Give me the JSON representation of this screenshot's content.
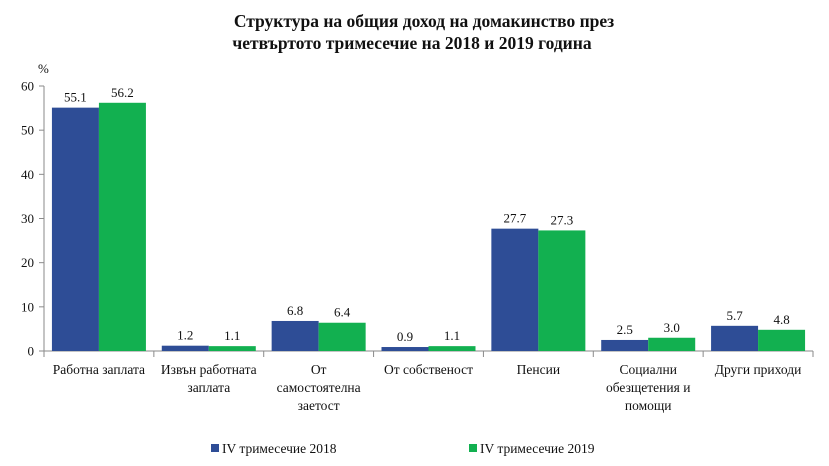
{
  "chart_data": {
    "type": "bar",
    "title": [
      "Структура на общия доход на домакинство през",
      "четвъртото тримесечие на 2018 и 2019 година"
    ],
    "ylabel": "%",
    "ylim": [
      0,
      60
    ],
    "yticks": [
      0,
      10,
      20,
      30,
      40,
      50,
      60
    ],
    "grid": false,
    "legend_position": "bottom",
    "categories": [
      [
        "Работна заплата"
      ],
      [
        "Извън работната",
        "заплата"
      ],
      [
        "От",
        "самостоятелна",
        "заетост"
      ],
      [
        "От собственост"
      ],
      [
        "Пенсии"
      ],
      [
        "Социални",
        "обезщетения и",
        "помощи"
      ],
      [
        "Други приходи"
      ]
    ],
    "series": [
      {
        "name": "IV  тримесечие 2018",
        "color": "#2e4d96",
        "values": [
          55.1,
          1.2,
          6.8,
          0.9,
          27.7,
          2.5,
          5.7
        ],
        "labels": [
          "55.1",
          "1.2",
          "6.8",
          "0.9",
          "27.7",
          "2.5",
          "5.7"
        ]
      },
      {
        "name": "IV  тримесечие 2019",
        "color": "#12b050",
        "values": [
          56.2,
          1.1,
          6.4,
          1.1,
          27.3,
          3.0,
          4.8
        ],
        "labels": [
          "56.2",
          "1.1",
          "6.4",
          "1.1",
          "27.3",
          "3.0",
          "4.8"
        ]
      }
    ]
  }
}
